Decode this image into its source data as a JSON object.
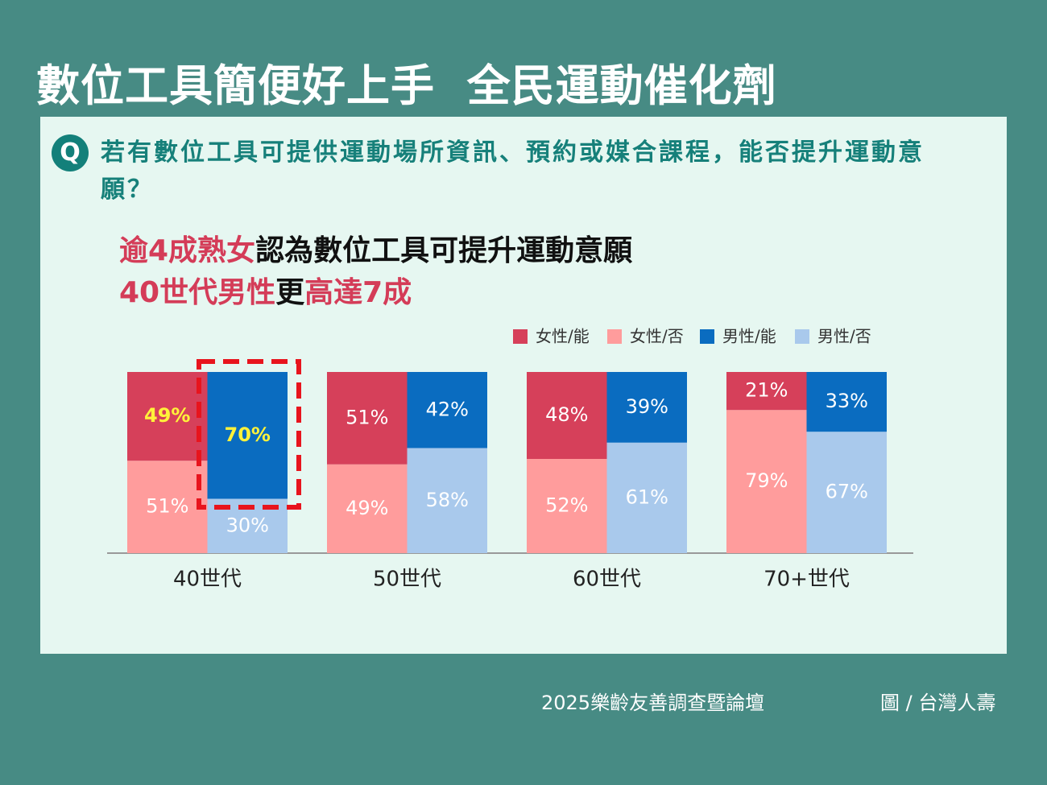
{
  "title": "數位工具簡便好上手  全民運動催化劑",
  "question": {
    "icon": "Q",
    "text": "若有數位工具可提供運動場所資訊、預約或媒合課程，能否提升運動意願？"
  },
  "headline": {
    "lines": [
      [
        "逾4成熟女",
        "認為數位工具可提升運動意願"
      ],
      [
        "40世代男性",
        "更",
        "高達7成"
      ]
    ]
  },
  "chart_data": {
    "type": "grouped-stacked-bar",
    "categories": [
      "40世代",
      "50世代",
      "60世代",
      "70+世代"
    ],
    "series": [
      {
        "name": "女性/能",
        "color": "#d6405a",
        "values": [
          49,
          51,
          48,
          21
        ],
        "value_labels": [
          "49%",
          "51%",
          "48%",
          "21%"
        ]
      },
      {
        "name": "女性/否",
        "color": "#ff9c9c",
        "values": [
          51,
          49,
          52,
          79
        ],
        "value_labels": [
          "51%",
          "49%",
          "52%",
          "79%"
        ]
      },
      {
        "name": "男性/能",
        "color": "#0a6cc0",
        "values": [
          70,
          42,
          39,
          33
        ],
        "value_labels": [
          "70%",
          "42%",
          "39%",
          "33%"
        ]
      },
      {
        "name": "男性/否",
        "color": "#a9c9ec",
        "values": [
          30,
          58,
          61,
          67
        ],
        "value_labels": [
          "30%",
          "58%",
          "61%",
          "67%"
        ]
      }
    ]
  },
  "footer": {
    "source": "2025樂齡友善調查暨論壇",
    "credit": "圖 / 台灣人壽"
  }
}
